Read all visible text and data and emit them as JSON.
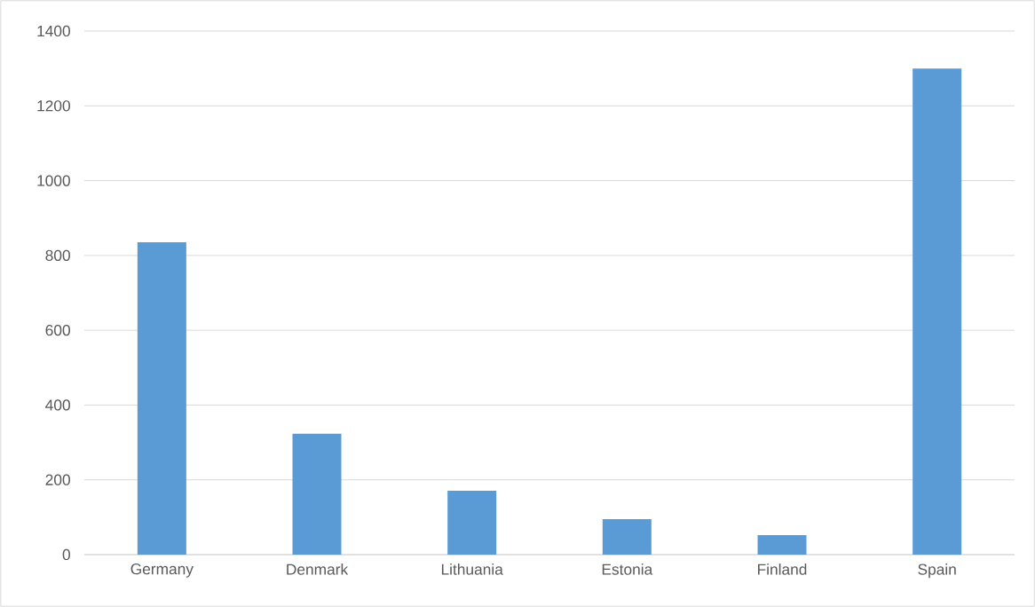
{
  "chart_data": {
    "type": "bar",
    "categories": [
      "Germany",
      "Denmark",
      "Lithuania",
      "Estonia",
      "Finland",
      "Spain"
    ],
    "values": [
      835,
      323,
      171,
      95,
      52,
      1300
    ],
    "color": "#5b9bd5",
    "ylim": [
      0,
      1400
    ],
    "yticks": [
      0,
      200,
      400,
      600,
      800,
      1000,
      1200,
      1400
    ],
    "grid": "y"
  }
}
